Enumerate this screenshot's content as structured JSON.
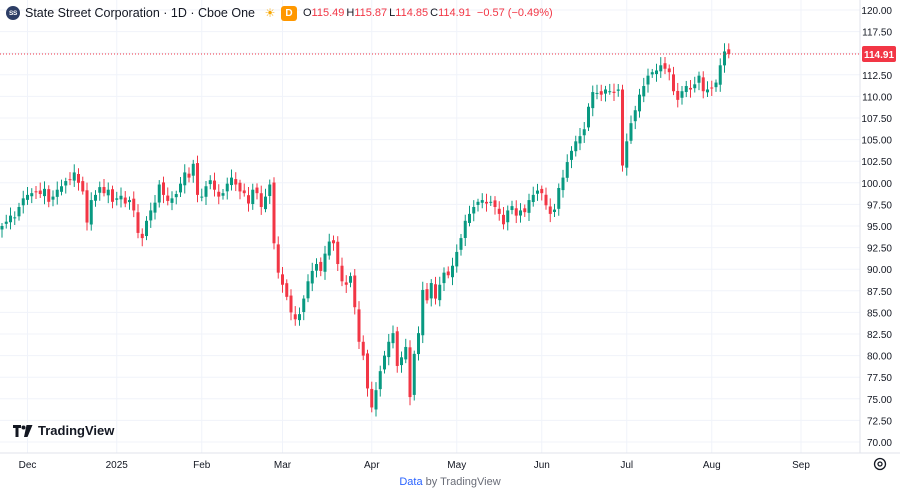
{
  "header": {
    "badge": "SS",
    "symbol": "State Street Corporation · 1D · Cboe One",
    "interval_badge": "D",
    "o_label": "O",
    "o_value": "115.49",
    "h_label": "H",
    "h_value": "115.87",
    "l_label": "L",
    "l_value": "114.85",
    "c_label": "C",
    "c_value": "114.91",
    "change": "−0.57 (−0.49%)"
  },
  "watermark": {
    "text": "TradingView"
  },
  "footer": {
    "data": "Data",
    "by": "by TradingView"
  },
  "colors": {
    "up": "#089981",
    "down": "#f23645",
    "grid": "#f0f3fa",
    "axis_text": "#131722",
    "last_price": "#f23645"
  },
  "chart_data": {
    "type": "candlestick",
    "last_price": 114.91,
    "last_price_label": "114.91",
    "ylim": [
      69,
      121
    ],
    "y_ticks": [
      70,
      72.5,
      75,
      77.5,
      80,
      82.5,
      85,
      87.5,
      90,
      92.5,
      95,
      97.5,
      100,
      102.5,
      105,
      107.5,
      110,
      112.5,
      115,
      117.5,
      120
    ],
    "y_tick_labels": [
      "70.00",
      "72.50",
      "75.00",
      "77.50",
      "80.00",
      "82.50",
      "85.00",
      "87.50",
      "90.00",
      "92.50",
      "95.00",
      "97.50",
      "100.00",
      "102.50",
      "105.00",
      "107.50",
      "110.00",
      "112.50",
      "115.00",
      "117.50",
      "120.00"
    ],
    "x_ticks": [
      {
        "label": "Dec",
        "index": 6
      },
      {
        "label": "2025",
        "index": 27
      },
      {
        "label": "Feb",
        "index": 47
      },
      {
        "label": "Mar",
        "index": 66
      },
      {
        "label": "Apr",
        "index": 87
      },
      {
        "label": "May",
        "index": 107
      },
      {
        "label": "Jun",
        "index": 127
      },
      {
        "label": "Jul",
        "index": 147
      },
      {
        "label": "Aug",
        "index": 167
      },
      {
        "label": "Sep",
        "index": 188
      }
    ],
    "closes": [
      95.0,
      95.5,
      96.2,
      96.0,
      97.2,
      98.2,
      98.6,
      98.8,
      99.0,
      98.7,
      99.3,
      97.8,
      98.4,
      99.2,
      99.6,
      100.2,
      100.4,
      101.2,
      100.0,
      99.0,
      95.4,
      98.0,
      98.6,
      99.5,
      98.8,
      99.2,
      97.8,
      98.2,
      98.5,
      97.6,
      98.0,
      96.8,
      94.2,
      93.6,
      95.6,
      96.8,
      97.7,
      99.8,
      98.6,
      97.9,
      98.2,
      98.7,
      99.9,
      101.2,
      100.6,
      102.2,
      98.6,
      98.4,
      99.6,
      100.3,
      99.2,
      98.4,
      98.8,
      99.9,
      100.6,
      99.8,
      99.0,
      98.8,
      97.6,
      99.2,
      98.8,
      97.2,
      98.4,
      99.8,
      93.0,
      89.6,
      88.2,
      86.8,
      85.0,
      84.2,
      84.8,
      86.6,
      88.6,
      89.8,
      90.6,
      89.8,
      91.8,
      93.2,
      93.0,
      90.6,
      88.6,
      88.2,
      89.2,
      85.6,
      81.6,
      80.0,
      76.2,
      74.0,
      76.0,
      78.2,
      80.0,
      81.6,
      82.6,
      78.8,
      79.8,
      81.0,
      75.2,
      80.2,
      82.6,
      87.6,
      86.4,
      88.4,
      86.6,
      88.2,
      89.6,
      89.3,
      90.4,
      92.0,
      93.6,
      95.6,
      96.4,
      97.2,
      97.8,
      98.0,
      97.6,
      97.8,
      97.2,
      96.4,
      95.2,
      96.8,
      97.3,
      96.2,
      96.8,
      96.6,
      98.0,
      98.6,
      99.1,
      98.8,
      97.4,
      96.4,
      96.9,
      99.4,
      100.6,
      102.4,
      103.7,
      104.8,
      105.4,
      106.2,
      108.8,
      110.5,
      110.4,
      110.2,
      110.8,
      110.6,
      110.4,
      110.8,
      102.0,
      104.8,
      106.9,
      108.4,
      110.2,
      111.2,
      112.4,
      112.8,
      113.0,
      113.6,
      113.2,
      112.8,
      110.6,
      109.6,
      110.6,
      111.2,
      110.8,
      111.4,
      112.4,
      110.6,
      110.8,
      111.0,
      111.6,
      113.6,
      115.2,
      114.91
    ],
    "open_labels": "",
    "note": ""
  }
}
